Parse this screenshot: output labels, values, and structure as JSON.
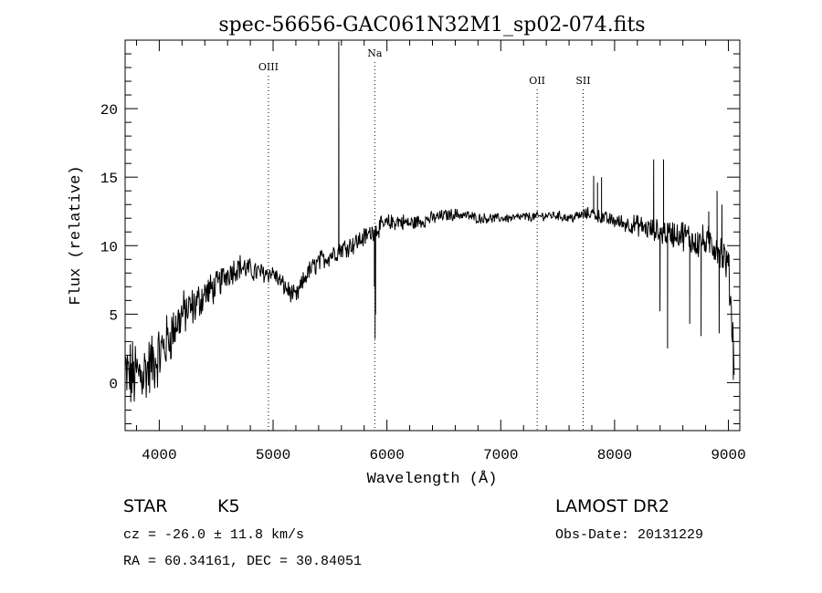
{
  "chart_data": {
    "type": "line",
    "title": "spec-56656-GAC061N32M1_sp02-074.fits",
    "xlabel": "Wavelength (Å)",
    "ylabel": "Flux (relative)",
    "xlim": [
      3700,
      9100
    ],
    "ylim": [
      -3.5,
      25
    ],
    "xticks": [
      4000,
      5000,
      6000,
      7000,
      8000,
      9000
    ],
    "yticks": [
      0,
      5,
      10,
      15,
      20
    ],
    "xtick_labels": [
      "4000",
      "5000",
      "6000",
      "7000",
      "8000",
      "9000"
    ],
    "ytick_labels": [
      "0",
      "5",
      "10",
      "15",
      "20"
    ],
    "grid": false,
    "line_color": "#000000",
    "continuum": {
      "x": [
        3700,
        3800,
        3900,
        4000,
        4100,
        4200,
        4300,
        4400,
        4500,
        4600,
        4700,
        4800,
        4900,
        5000,
        5100,
        5200,
        5300,
        5400,
        5500,
        5600,
        5700,
        5800,
        5900,
        6000,
        6100,
        6200,
        6300,
        6400,
        6500,
        6600,
        6700,
        6800,
        6900,
        7000,
        7100,
        7200,
        7300,
        7400,
        7500,
        7600,
        7700,
        7800,
        7900,
        8000,
        8100,
        8200,
        8300,
        8400,
        8500,
        8600,
        8700,
        8800,
        8900,
        9000,
        9050
      ],
      "y": [
        0.5,
        0.5,
        1.0,
        2.0,
        3.5,
        5.0,
        5.5,
        6.5,
        7.0,
        8.0,
        8.5,
        8.2,
        8.0,
        8.0,
        7.0,
        6.2,
        8.0,
        8.8,
        9.3,
        9.8,
        10.1,
        10.6,
        11.2,
        11.6,
        11.8,
        11.6,
        11.8,
        12.0,
        12.2,
        12.3,
        12.2,
        12.0,
        12.0,
        12.0,
        12.0,
        12.1,
        12.1,
        12.2,
        12.2,
        12.0,
        12.2,
        12.4,
        12.0,
        11.8,
        11.6,
        11.5,
        11.2,
        11.0,
        10.9,
        10.8,
        10.3,
        10.2,
        10.0,
        8.5,
        2.0
      ]
    },
    "noise_amplitude": {
      "x": [
        3700,
        4000,
        4200,
        4500,
        5000,
        5500,
        6000,
        6500,
        7000,
        7500,
        8000,
        8500,
        9000,
        9050
      ],
      "y": [
        2.5,
        2.0,
        1.5,
        1.0,
        0.6,
        0.7,
        0.6,
        0.4,
        0.3,
        0.3,
        0.5,
        0.9,
        1.3,
        1.5
      ]
    },
    "features": [
      {
        "x": 5577,
        "y": 24.9
      },
      {
        "x": 5890,
        "y": 7.0
      },
      {
        "x": 5896,
        "y": 3.2
      },
      {
        "x": 5900,
        "y": 5.0
      },
      {
        "x": 7816,
        "y": 15.1
      },
      {
        "x": 7850,
        "y": 14.6
      },
      {
        "x": 7885,
        "y": 15.0
      },
      {
        "x": 8343,
        "y": 16.3
      },
      {
        "x": 8399,
        "y": 5.2
      },
      {
        "x": 8430,
        "y": 16.3
      },
      {
        "x": 8465,
        "y": 2.5
      },
      {
        "x": 8660,
        "y": 4.3
      },
      {
        "x": 8760,
        "y": 3.4
      },
      {
        "x": 8827,
        "y": 12.5
      },
      {
        "x": 8900,
        "y": 14.0
      },
      {
        "x": 8919,
        "y": 3.6
      },
      {
        "x": 8943,
        "y": 13.0
      },
      {
        "x": 9000,
        "y": 9.5
      },
      {
        "x": 9043,
        "y": 0.2
      }
    ],
    "line_markers": [
      {
        "label": "OIII",
        "x": 4959,
        "label_y": 22.8
      },
      {
        "label": "Na",
        "x": 5893,
        "label_y": 23.8
      },
      {
        "label": "OII",
        "x": 7320,
        "label_y": 21.8
      },
      {
        "label": "SII",
        "x": 7724,
        "label_y": 21.8
      }
    ]
  },
  "footer": {
    "object_class": "STAR",
    "subclass": "K5",
    "survey": "LAMOST DR2",
    "redshift_text": "cz = -26.0 ± 11.8 km/s",
    "obs_date_text": "Obs-Date: 20131229",
    "coords_text": "RA =  60.34161, DEC =  30.84051"
  }
}
